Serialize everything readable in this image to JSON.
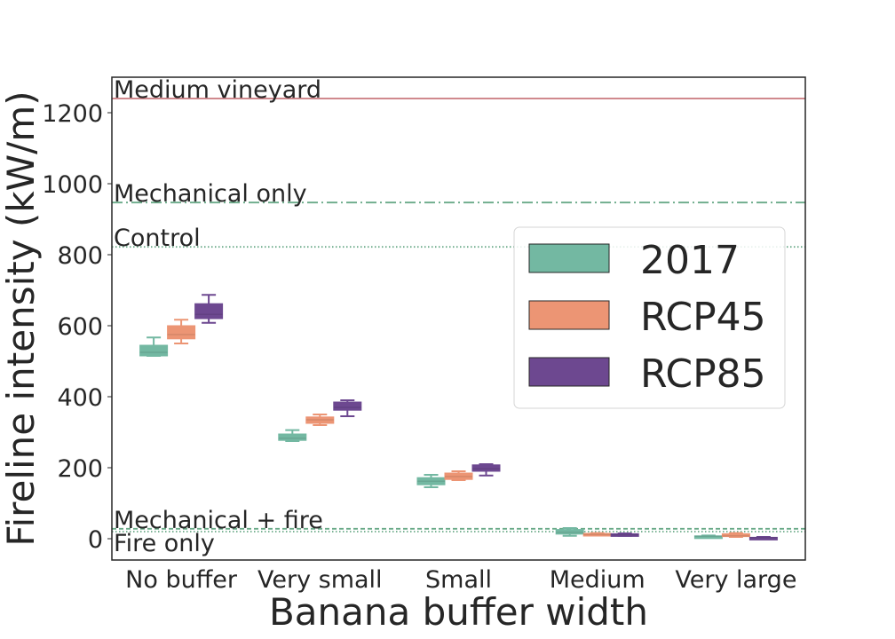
{
  "chart_data": {
    "type": "box",
    "xlabel": "Banana buffer width",
    "ylabel": "Fireline intensity (kW/m)",
    "categories": [
      "No buffer",
      "Very small",
      "Small",
      "Medium",
      "Very large"
    ],
    "ylim": [
      -60,
      1300
    ],
    "yticks": [
      0,
      200,
      400,
      600,
      800,
      1000,
      1200
    ],
    "grid": false,
    "legend_position": "center-right",
    "series": [
      {
        "name": "2017",
        "color": "#73b8a2",
        "boxes": [
          {
            "whisker_low": 515,
            "q1": 515,
            "median": 525,
            "q3": 545,
            "whisker_high": 567
          },
          {
            "whisker_low": 275,
            "q1": 277,
            "median": 283,
            "q3": 295,
            "whisker_high": 306
          },
          {
            "whisker_low": 145,
            "q1": 152,
            "median": 162,
            "q3": 172,
            "whisker_high": 180
          },
          {
            "whisker_low": 8,
            "q1": 13,
            "median": 18,
            "q3": 26,
            "whisker_high": 30
          },
          {
            "whisker_low": 5,
            "q1": 6,
            "median": 7,
            "q3": 8,
            "whisker_high": 9
          }
        ]
      },
      {
        "name": "RCP45",
        "color": "#ec9574",
        "boxes": [
          {
            "whisker_low": 550,
            "q1": 563,
            "median": 575,
            "q3": 600,
            "whisker_high": 617
          },
          {
            "whisker_low": 320,
            "q1": 325,
            "median": 335,
            "q3": 343,
            "whisker_high": 350
          },
          {
            "whisker_low": 165,
            "q1": 167,
            "median": 175,
            "q3": 185,
            "whisker_high": 190
          },
          {
            "whisker_low": 10,
            "q1": 10,
            "median": 12,
            "q3": 15,
            "whisker_high": 16
          },
          {
            "whisker_low": 5,
            "q1": 6,
            "median": 8,
            "q3": 14,
            "whisker_high": 16
          }
        ]
      },
      {
        "name": "RCP85",
        "color": "#6d4890",
        "boxes": [
          {
            "whisker_low": 608,
            "q1": 620,
            "median": 632,
            "q3": 662,
            "whisker_high": 687
          },
          {
            "whisker_low": 345,
            "q1": 362,
            "median": 370,
            "q3": 385,
            "whisker_high": 390
          },
          {
            "whisker_low": 178,
            "q1": 190,
            "median": 197,
            "q3": 208,
            "whisker_high": 210
          },
          {
            "whisker_low": 8,
            "q1": 9,
            "median": 11,
            "q3": 14,
            "whisker_high": 15
          },
          {
            "whisker_low": 1,
            "q1": 2,
            "median": 3,
            "q3": 4,
            "whisker_high": 5
          }
        ]
      }
    ],
    "reference_lines": [
      {
        "label": "Medium vineyard",
        "value": 1240,
        "color": "#c9787e",
        "style": "solid",
        "label_side": "above"
      },
      {
        "label": "Mechanical only",
        "value": 947,
        "color": "#6aaa88",
        "style": "dashdot",
        "label_side": "above"
      },
      {
        "label": "Control",
        "value": 822,
        "color": "#6aaa88",
        "style": "dotted",
        "label_side": "above"
      },
      {
        "label": "Mechanical + fire",
        "value": 28,
        "color": "#6aaa88",
        "style": "dashed",
        "label_side": "above"
      },
      {
        "label": "Fire only",
        "value": 20,
        "color": "#6aaa88",
        "style": "dotted",
        "label_side": "below"
      }
    ]
  }
}
